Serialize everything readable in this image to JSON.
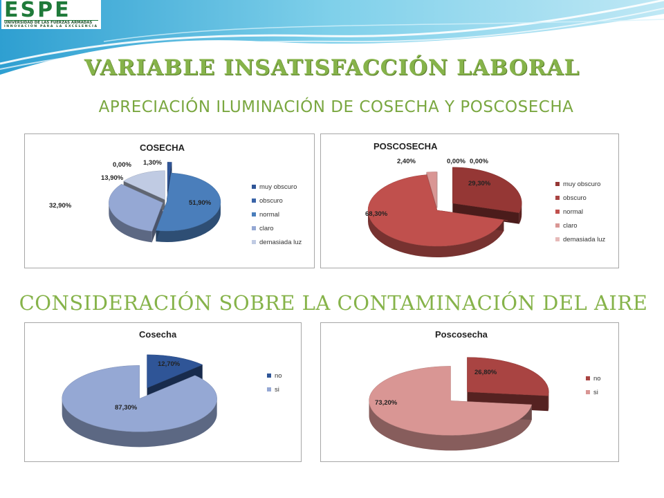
{
  "header": {
    "logo": {
      "main": "ESPE",
      "sub1": "UNIVERSIDAD DE LAS FUERZAS ARMADAS",
      "sub2": "INNOVACIÓN PARA LA EXCELENCIA"
    },
    "title": "VARIABLE INSATISFACCIÓN LABORAL",
    "subtitle_light": "APRECIACIÓN ILUMINACIÓN DE COSECHA Y POSCOSECHA",
    "subtitle_air": "CONSIDERACIÓN SOBRE LA CONTAMINACIÓN DEL AIRE"
  },
  "colors": {
    "title_green": "#86b34a",
    "wave_blue": "#4fb3d9"
  },
  "chart_data": [
    {
      "type": "pie",
      "title": "COSECHA",
      "legend_position": "right",
      "categories": [
        "muy obscuro",
        "obscuro",
        "normal",
        "claro",
        "demasiada luz"
      ],
      "values": [
        1.3,
        0.0,
        51.9,
        32.9,
        13.9
      ],
      "labels": [
        "1,30%",
        "0,00%",
        "51,90%",
        "32,90%",
        "13,90%"
      ],
      "colors": [
        "#2f5597",
        "#3a64a8",
        "#4a7ebb",
        "#95a8d4",
        "#c0cbe3"
      ]
    },
    {
      "type": "pie",
      "title": "POSCOSECHA",
      "legend_position": "right",
      "categories": [
        "muy obscuro",
        "obscuro",
        "normal",
        "claro",
        "demasiada luz"
      ],
      "values": [
        29.3,
        0.0,
        68.3,
        2.4,
        0.0
      ],
      "labels": [
        "29,30%",
        "0,00%",
        "68,30%",
        "2,40%",
        "0,00%"
      ],
      "colors": [
        "#953735",
        "#a94442",
        "#c0504d",
        "#d99694",
        "#e6b9b8"
      ]
    },
    {
      "type": "pie",
      "title": "Cosecha",
      "legend_position": "right",
      "categories": [
        "no",
        "si"
      ],
      "values": [
        12.7,
        87.3
      ],
      "labels": [
        "12,70%",
        "87,30%"
      ],
      "colors": [
        "#2f5597",
        "#95a8d4"
      ]
    },
    {
      "type": "pie",
      "title": "Poscosecha",
      "legend_position": "right",
      "categories": [
        "no",
        "si"
      ],
      "values": [
        26.8,
        73.2
      ],
      "labels": [
        "26,80%",
        "73,20%"
      ],
      "colors": [
        "#a94442",
        "#d99694"
      ]
    }
  ]
}
